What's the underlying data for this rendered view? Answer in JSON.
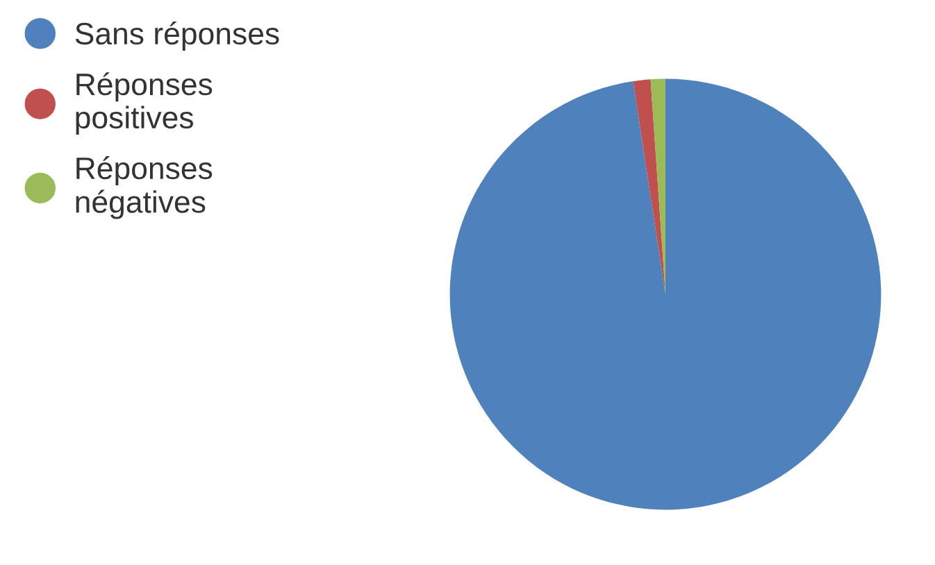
{
  "chart_data": {
    "type": "pie",
    "categories": [
      "Sans réponses",
      "Réponses\npositives",
      "Réponses\nnégatives"
    ],
    "values": [
      97.6,
      1.3,
      1.1
    ],
    "colors": [
      "#4f81bd",
      "#c0504d",
      "#9bbb59"
    ],
    "legend": "left"
  }
}
